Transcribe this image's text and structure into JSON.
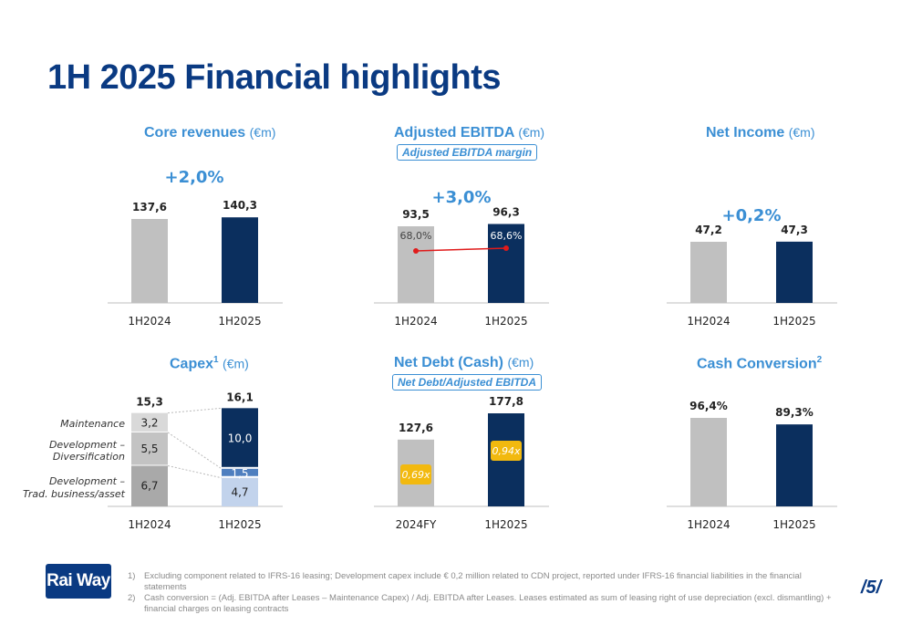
{
  "page": {
    "title": "1H 2025 Financial highlights",
    "page_number": "/5/",
    "logo": "Rai Way",
    "footnotes": [
      {
        "num": "1)",
        "text": "Excluding component related to IFRS-16 leasing; Development capex include € 0,2 million related to CDN project, reported under IFRS-16 financial liabilities in the financial statements"
      },
      {
        "num": "2)",
        "text": "Cash conversion = (Adj. EBITDA after Leases – Maintenance Capex) / Adj. EBITDA after Leases. Leases estimated as sum of leasing right of use depreciation (excl. dismantling) + financial charges on leasing contracts"
      }
    ],
    "chart_titles": {
      "core": {
        "main": "Core revenues",
        "unit": "(€m)"
      },
      "ebitda": {
        "main": "Adjusted EBITDA",
        "unit": "(€m)",
        "sub": "Adjusted EBITDA margin"
      },
      "net": {
        "main": "Net Income",
        "unit": "(€m)"
      },
      "capex": {
        "main": "Capex",
        "sup": "1",
        "unit": "(€m)"
      },
      "debt": {
        "main": "Net Debt (Cash)",
        "unit": "(€m)",
        "sub": "Net Debt/Adjusted EBITDA"
      },
      "cash": {
        "main": "Cash Conversion",
        "sup": "2"
      }
    }
  },
  "colors": {
    "prior": "#c0c0c0",
    "current": "#0b2f5e",
    "accent": "#3b8fd4",
    "gold": "#f2b90f",
    "line": "#e01b1b",
    "capex_light1": "#d9d9d9",
    "capex_light2": "#c3c3c3",
    "capex_light3": "#a9a9a9",
    "capex_mid": "#4f7fbf",
    "capex_pale": "#c2d3ec"
  },
  "chart_data": [
    {
      "id": "core",
      "type": "bar",
      "categories": [
        "1H2024",
        "1H2025"
      ],
      "values": [
        137.6,
        140.3
      ],
      "labels": [
        "137,6",
        "140,3"
      ],
      "growth": "+2,0%"
    },
    {
      "id": "ebitda",
      "type": "bar",
      "categories": [
        "1H2024",
        "1H2025"
      ],
      "values": [
        93.5,
        96.3
      ],
      "labels": [
        "93,5",
        "96,3"
      ],
      "growth": "+3,0%",
      "margin": {
        "values": [
          68.0,
          68.6
        ],
        "labels": [
          "68,0%",
          "68,6%"
        ]
      }
    },
    {
      "id": "net",
      "type": "bar",
      "categories": [
        "1H2024",
        "1H2025"
      ],
      "values": [
        47.2,
        47.3
      ],
      "labels": [
        "47,2",
        "47,3"
      ],
      "growth": "+0,2%"
    },
    {
      "id": "capex",
      "type": "bar",
      "stacked": true,
      "categories": [
        "1H2024",
        "1H2025"
      ],
      "totals": [
        15.3,
        16.1
      ],
      "total_labels": [
        "15,3",
        "16,1"
      ],
      "series": [
        {
          "name": "Development – Trad. business/asset",
          "values": [
            6.7,
            4.7
          ],
          "labels": [
            "6,7",
            "4,7"
          ]
        },
        {
          "name": "Development – Diversification",
          "values": [
            5.5,
            1.5
          ],
          "labels": [
            "5,5",
            "1,5"
          ]
        },
        {
          "name": "Maintenance",
          "values": [
            3.2,
            10.0
          ],
          "labels": [
            "3,2",
            "10,0"
          ]
        }
      ],
      "legend": [
        "Maintenance",
        "Development –",
        "Diversification",
        "Development –",
        "Trad. business/asset"
      ]
    },
    {
      "id": "debt",
      "type": "bar",
      "categories": [
        "2024FY",
        "1H2025"
      ],
      "values": [
        127.6,
        177.8
      ],
      "labels": [
        "127,6",
        "177,8"
      ],
      "ratio_labels": [
        "0,69x",
        "0,94x"
      ]
    },
    {
      "id": "cash",
      "type": "bar",
      "categories": [
        "1H2024",
        "1H2025"
      ],
      "values": [
        96.4,
        89.3
      ],
      "labels": [
        "96,4%",
        "89,3%"
      ]
    }
  ]
}
